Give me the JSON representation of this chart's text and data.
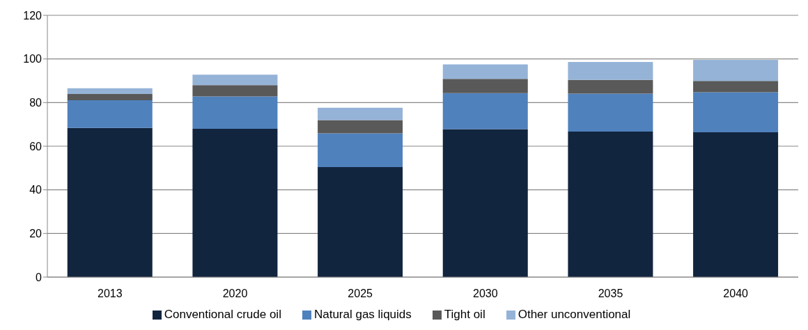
{
  "chart_data": {
    "type": "bar",
    "stacked": true,
    "categories": [
      "2013",
      "2020",
      "2025",
      "2030",
      "2035",
      "2040"
    ],
    "series": [
      {
        "name": "Conventional crude oil",
        "color": "#12253f",
        "values": [
          68.4,
          68.0,
          50.4,
          67.8,
          66.7,
          66.4
        ]
      },
      {
        "name": "Natural gas liquids",
        "color": "#4f81bd",
        "values": [
          12.7,
          14.8,
          15.5,
          16.5,
          17.4,
          18.3
        ]
      },
      {
        "name": "Tight oil",
        "color": "#595959",
        "values": [
          2.8,
          5.2,
          6.1,
          6.6,
          6.3,
          5.2
        ]
      },
      {
        "name": "Other unconventional",
        "color": "#95b3d7",
        "values": [
          2.7,
          4.8,
          5.6,
          6.6,
          8.2,
          9.7
        ]
      }
    ],
    "ylim": [
      0,
      120
    ],
    "yticks": [
      0,
      20,
      40,
      60,
      80,
      100,
      120
    ],
    "grid": "y",
    "legend": "bottom"
  }
}
